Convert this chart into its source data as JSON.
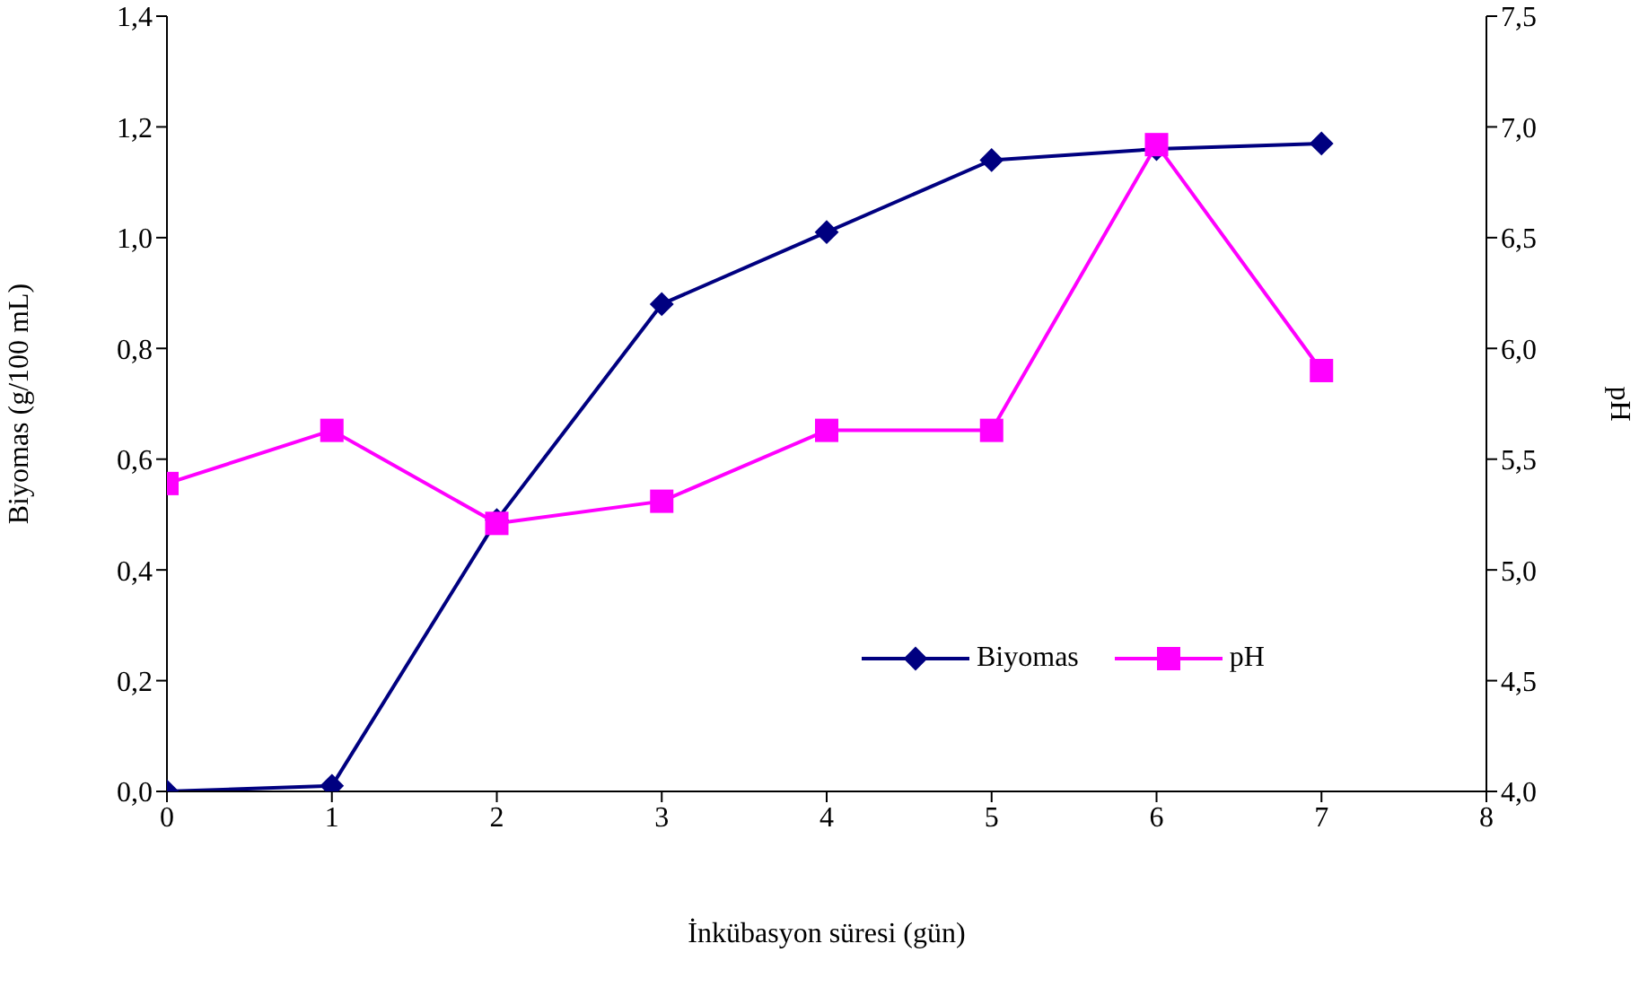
{
  "chart_data": {
    "type": "line",
    "xlabel": "İnkübasyon süresi (gün)",
    "ylabel": "Biyomas (g/100 mL)",
    "y2label": "pH",
    "x": [
      0,
      1,
      2,
      3,
      4,
      5,
      6,
      7
    ],
    "series": [
      {
        "name": "Biyomas",
        "color": "#000080",
        "marker": "diamond",
        "values": [
          0,
          0.01,
          0.49,
          0.88,
          1.01,
          1.14,
          1.16,
          1.17
        ]
      },
      {
        "name": "pH",
        "color": "#ff00ff",
        "marker": "square",
        "axis": "y2",
        "values": [
          5.39,
          5.63,
          5.21,
          5.31,
          5.63,
          5.63,
          6.92,
          5.9
        ]
      }
    ],
    "xlim": [
      0,
      8
    ],
    "xticks": [
      0,
      1,
      2,
      3,
      4,
      5,
      6,
      7,
      8
    ],
    "ylim": [
      0,
      1.4
    ],
    "yticks": [
      {
        "value": 0,
        "label": "0,0"
      },
      {
        "value": 0.2,
        "label": "0,2"
      },
      {
        "value": 0.4,
        "label": "0,4"
      },
      {
        "value": 0.6,
        "label": "0,6"
      },
      {
        "value": 0.8,
        "label": "0,8"
      },
      {
        "value": 1,
        "label": "1,0"
      },
      {
        "value": 1.2,
        "label": "1,2"
      },
      {
        "value": 1.4,
        "label": "1,4"
      }
    ],
    "y2lim": [
      4,
      7.5
    ],
    "y2ticks": [
      {
        "value": 4,
        "label": "4,0"
      },
      {
        "value": 4.5,
        "label": "4,5"
      },
      {
        "value": 5,
        "label": "5,0"
      },
      {
        "value": 5.5,
        "label": "5,5"
      },
      {
        "value": 6,
        "label": "6,0"
      },
      {
        "value": 6.5,
        "label": "6,5"
      },
      {
        "value": 7,
        "label": "7,0"
      },
      {
        "value": 7.5,
        "label": "7,5"
      }
    ],
    "grid": false,
    "legend": "bottom right",
    "line_style": "solid"
  }
}
